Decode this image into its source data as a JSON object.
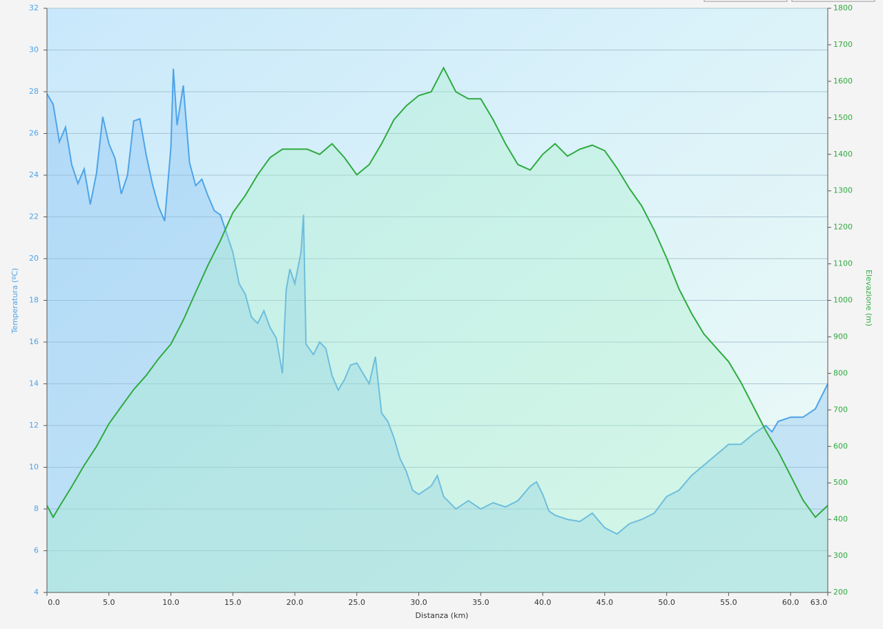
{
  "chart_data": {
    "type": "line",
    "x_label": "Distanza  (km)",
    "y_label": "Temperatura (ºC)",
    "y2_label": "Elevazione (m)",
    "xlim": [
      0,
      63
    ],
    "xticks": [
      {
        "value": 0,
        "label": "0.0"
      },
      {
        "value": 5,
        "label": "5.0"
      },
      {
        "value": 10,
        "label": "10.0"
      },
      {
        "value": 15,
        "label": "15.0"
      },
      {
        "value": 20,
        "label": "20.0"
      },
      {
        "value": 25,
        "label": "25.0"
      },
      {
        "value": 30,
        "label": "30.0"
      },
      {
        "value": 35,
        "label": "35.0"
      },
      {
        "value": 40,
        "label": "40.0"
      },
      {
        "value": 45,
        "label": "45.0"
      },
      {
        "value": 50,
        "label": "50.0"
      },
      {
        "value": 55,
        "label": "55.0"
      },
      {
        "value": 60,
        "label": "60.0"
      },
      {
        "value": 63,
        "label": "63.0"
      }
    ],
    "ylim": [
      4,
      32
    ],
    "yticks": [
      4,
      6,
      8,
      10,
      12,
      14,
      16,
      18,
      20,
      22,
      24,
      26,
      28,
      30,
      32
    ],
    "y2lim": [
      200,
      1800
    ],
    "y2ticks": [
      200,
      300,
      400,
      500,
      600,
      700,
      800,
      900,
      1000,
      1100,
      1200,
      1300,
      1400,
      1500,
      1600,
      1700,
      1800
    ],
    "grid": true,
    "series": [
      {
        "name": "Temperatura",
        "color": "#4da3e8",
        "axis": "y",
        "x": [
          0,
          0.5,
          1,
          1.5,
          2,
          2.5,
          3,
          3.5,
          4,
          4.5,
          5,
          5.5,
          6,
          6.5,
          7,
          7.5,
          8,
          8.5,
          9,
          9.5,
          10,
          10.2,
          10.5,
          11,
          11.5,
          12,
          12.5,
          13,
          13.5,
          14,
          14.5,
          15,
          15.5,
          16,
          16.5,
          17,
          17.5,
          18,
          18.5,
          19,
          19.3,
          19.6,
          20,
          20.5,
          20.7,
          20.9,
          21.5,
          22,
          22.5,
          23,
          23.5,
          24,
          24.5,
          25,
          25.5,
          26,
          26.5,
          27,
          27.5,
          28,
          28.5,
          29,
          29.5,
          30,
          31,
          31.5,
          32,
          33,
          34,
          35,
          36,
          37,
          38,
          39,
          39.5,
          40,
          40.5,
          41,
          42,
          43,
          44,
          45,
          46,
          47,
          48,
          49,
          50,
          51,
          52,
          53,
          54,
          55,
          56,
          57,
          58,
          58.5,
          59,
          60,
          61,
          62,
          62.5,
          63
        ],
        "values": [
          27.9,
          27.4,
          25.6,
          26.3,
          24.5,
          23.6,
          24.3,
          22.6,
          24.1,
          26.8,
          25.5,
          24.8,
          23.1,
          24,
          26.6,
          26.7,
          25,
          23.6,
          22.5,
          21.8,
          25.3,
          29.1,
          26.4,
          28.3,
          24.6,
          23.5,
          23.8,
          23,
          22.3,
          22.1,
          21.2,
          20.3,
          18.8,
          18.3,
          17.2,
          16.9,
          17.5,
          16.7,
          16.2,
          14.5,
          18.5,
          19.5,
          18.8,
          20.3,
          22.1,
          15.9,
          15.4,
          16,
          15.7,
          14.4,
          13.7,
          14.2,
          14.9,
          15,
          14.5,
          14,
          15.3,
          12.6,
          12.2,
          11.4,
          10.4,
          9.8,
          8.9,
          8.7,
          9.1,
          9.6,
          8.6,
          8,
          8.4,
          8,
          8.3,
          8.1,
          8.4,
          9.1,
          9.3,
          8.7,
          7.9,
          7.7,
          7.5,
          7.4,
          7.8,
          7.1,
          6.8,
          7.3,
          7.5,
          7.8,
          8.6,
          8.9,
          9.6,
          10.1,
          10.6,
          11.1,
          11.1,
          11.6,
          12,
          11.7,
          12.2,
          12.4,
          12.4,
          12.8,
          13.4,
          14
        ]
      },
      {
        "name": "Elevazione",
        "color": "#2eaa3e",
        "axis": "y2",
        "x": [
          0,
          0.5,
          1,
          2,
          3,
          4,
          5,
          6,
          7,
          8,
          9,
          10,
          11,
          12,
          13,
          14,
          15,
          16,
          17,
          18,
          19,
          20,
          21,
          22,
          23,
          24,
          25,
          26,
          27,
          28,
          29,
          30,
          31,
          32,
          33,
          34,
          35,
          36,
          37,
          38,
          39,
          40,
          41,
          42,
          43,
          44,
          45,
          46,
          47,
          48,
          49,
          50,
          51,
          52,
          53,
          54,
          55,
          56,
          57,
          58,
          59,
          60,
          61,
          62,
          63
        ],
        "values": [
          438,
          406,
          435,
          490,
          548,
          600,
          662,
          709,
          756,
          794,
          840,
          880,
          946,
          1022,
          1097,
          1164,
          1240,
          1287,
          1344,
          1391,
          1414,
          1414,
          1414,
          1400,
          1429,
          1391,
          1344,
          1372,
          1429,
          1495,
          1533,
          1561,
          1571,
          1637,
          1571,
          1552,
          1552,
          1495,
          1429,
          1372,
          1357,
          1400,
          1429,
          1395,
          1414,
          1425,
          1410,
          1362,
          1306,
          1258,
          1192,
          1116,
          1031,
          965,
          908,
          870,
          832,
          775,
          709,
          643,
          586,
          520,
          453,
          406,
          438
        ]
      }
    ]
  }
}
